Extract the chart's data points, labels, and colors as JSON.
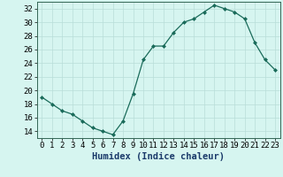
{
  "x": [
    0,
    1,
    2,
    3,
    4,
    5,
    6,
    7,
    8,
    9,
    10,
    11,
    12,
    13,
    14,
    15,
    16,
    17,
    18,
    19,
    20,
    21,
    22,
    23
  ],
  "y": [
    19.0,
    18.0,
    17.0,
    16.5,
    15.5,
    14.5,
    14.0,
    13.5,
    15.5,
    19.5,
    24.5,
    26.5,
    26.5,
    28.5,
    30.0,
    30.5,
    31.5,
    32.5,
    32.0,
    31.5,
    30.5,
    27.0,
    24.5,
    23.0
  ],
  "line_color": "#1a6b5a",
  "marker": "D",
  "marker_size": 2.0,
  "bg_color": "#d6f5f0",
  "grid_color": "#b8ddd8",
  "xlabel": "Humidex (Indice chaleur)",
  "ylim": [
    13,
    33
  ],
  "xlim": [
    -0.5,
    23.5
  ],
  "yticks": [
    14,
    16,
    18,
    20,
    22,
    24,
    26,
    28,
    30,
    32
  ],
  "xticks": [
    0,
    1,
    2,
    3,
    4,
    5,
    6,
    7,
    8,
    9,
    10,
    11,
    12,
    13,
    14,
    15,
    16,
    17,
    18,
    19,
    20,
    21,
    22,
    23
  ],
  "xlabel_fontsize": 7.5,
  "tick_fontsize": 6.5
}
